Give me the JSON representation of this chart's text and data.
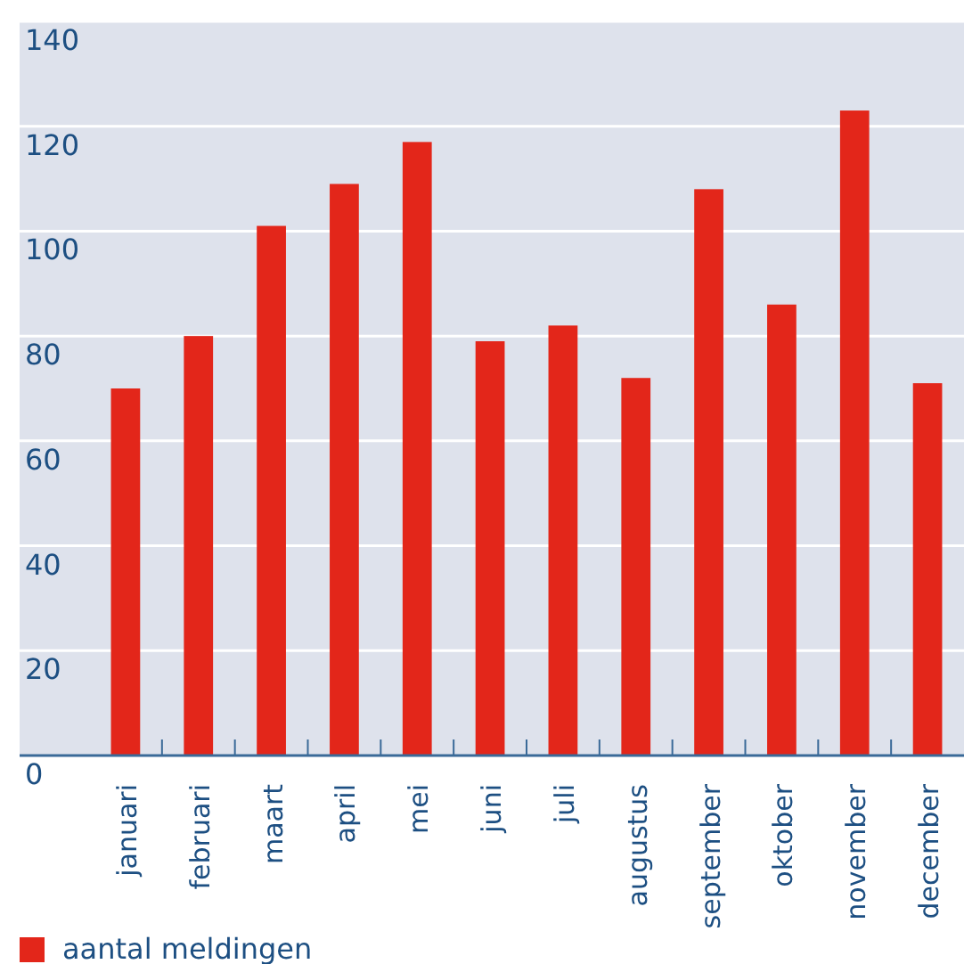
{
  "chart_data": {
    "type": "bar",
    "categories": [
      "januari",
      "februari",
      "maart",
      "april",
      "mei",
      "juni",
      "juli",
      "augustus",
      "september",
      "oktober",
      "november",
      "december"
    ],
    "series": [
      {
        "name": "aantal meldingen",
        "color": "#e3261a",
        "values": [
          70,
          80,
          101,
          109,
          117,
          79,
          82,
          72,
          108,
          86,
          123,
          71
        ]
      }
    ],
    "ylim": [
      0,
      140
    ],
    "yticks": [
      0,
      20,
      40,
      60,
      80,
      100,
      120,
      140
    ],
    "grid": "y",
    "legend": "bottom left"
  }
}
